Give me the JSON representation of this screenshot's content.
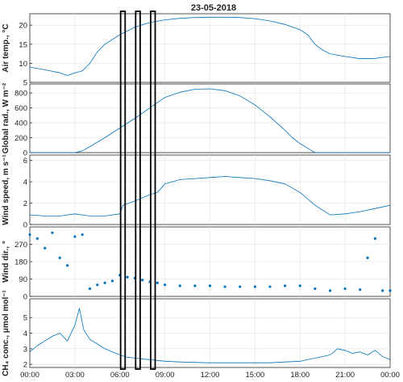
{
  "chart_data": {
    "type": "line",
    "title": "23-05-2018",
    "x_ticks": [
      "00:00",
      "03:00",
      "06:00",
      "09:00",
      "12:00",
      "15:00",
      "18:00",
      "21:00",
      "00:00"
    ],
    "x_hours": [
      0,
      3,
      6,
      9,
      12,
      15,
      18,
      21,
      24
    ],
    "xlim": [
      0,
      24
    ],
    "grid": true,
    "colors": {
      "series": "#0072BD",
      "window_box": "#000000"
    },
    "highlight_windows_hours": [
      [
        6.05,
        6.35
      ],
      [
        7.05,
        7.35
      ],
      [
        8.05,
        8.35
      ]
    ],
    "panels": [
      {
        "key": "temp",
        "style": "line",
        "ylabel": "Air temp., °C",
        "ylim": [
          5,
          23
        ],
        "yticks": [
          5,
          10,
          15,
          20
        ],
        "x": [
          0,
          1,
          2,
          2.5,
          3,
          3.5,
          4,
          4.5,
          5,
          6,
          7,
          8,
          9,
          10,
          11,
          12,
          13,
          14,
          15,
          16,
          17,
          18,
          18.5,
          19,
          19.5,
          20,
          21,
          22,
          23,
          24
        ],
        "y": [
          9,
          8.3,
          7.5,
          6.8,
          7.5,
          8,
          10,
          13,
          15,
          17.5,
          19.5,
          20.7,
          21.4,
          21.8,
          22,
          22.1,
          22.1,
          22,
          21.7,
          21.1,
          20.2,
          18.8,
          17.5,
          15,
          13.5,
          12.5,
          11.8,
          11.2,
          11.3,
          11.8
        ]
      },
      {
        "key": "rad",
        "style": "line",
        "ylabel": "Global rad., W m⁻²",
        "ylim": [
          0,
          920
        ],
        "yticks": [
          0,
          200,
          400,
          600,
          800
        ],
        "x": [
          0,
          3,
          3.5,
          4,
          5,
          6,
          7,
          8,
          9,
          10,
          11,
          12,
          13,
          14,
          15,
          16,
          17,
          17.5,
          18,
          19,
          24
        ],
        "y": [
          0,
          0,
          25,
          80,
          200,
          330,
          460,
          600,
          740,
          810,
          850,
          855,
          830,
          760,
          640,
          480,
          300,
          200,
          120,
          0,
          0
        ]
      },
      {
        "key": "wind",
        "style": "line",
        "ylabel": "Wind speed, m s⁻¹",
        "ylim": [
          0,
          6.5
        ],
        "yticks": [
          0,
          2,
          4,
          6
        ],
        "x": [
          0,
          1,
          2,
          3,
          4,
          5,
          6,
          6.2,
          7,
          8,
          8.5,
          9,
          10,
          11,
          12,
          13,
          14,
          15,
          16,
          17,
          18,
          19,
          20,
          21,
          22,
          23,
          24
        ],
        "y": [
          0.9,
          0.8,
          0.8,
          1.0,
          0.8,
          0.8,
          1.0,
          1.8,
          2.2,
          2.8,
          3.0,
          3.8,
          4.2,
          4.3,
          4.4,
          4.5,
          4.4,
          4.3,
          4.1,
          3.8,
          3.0,
          1.8,
          0.9,
          1.0,
          1.2,
          1.5,
          1.8
        ]
      },
      {
        "key": "dir",
        "style": "points",
        "ylabel": "Wind dir., °",
        "ylim": [
          0,
          360
        ],
        "yticks": [
          0,
          90,
          180,
          270
        ],
        "x": [
          0,
          0.5,
          1,
          1.5,
          2,
          2.5,
          3,
          3.5,
          4,
          4.5,
          5,
          5.5,
          6,
          6.5,
          7,
          7.5,
          8,
          8.5,
          9,
          10,
          11,
          12,
          13,
          14,
          15,
          16,
          17,
          18,
          19,
          20,
          21,
          22,
          22.5,
          23,
          23.5,
          24
        ],
        "y": [
          320,
          300,
          250,
          330,
          200,
          160,
          310,
          320,
          40,
          60,
          70,
          80,
          110,
          100,
          95,
          85,
          75,
          70,
          60,
          55,
          55,
          55,
          50,
          50,
          50,
          50,
          55,
          55,
          40,
          30,
          40,
          35,
          200,
          300,
          30,
          30
        ]
      },
      {
        "key": "ch4",
        "style": "line",
        "ylabel": "CH₄ conc., μmol mol⁻¹",
        "ylim": [
          1.8,
          6.2
        ],
        "yticks": [
          2,
          3,
          4,
          5
        ],
        "x": [
          0,
          0.5,
          1,
          1.5,
          2,
          2.5,
          3,
          3.3,
          3.6,
          4,
          4.5,
          5,
          5.5,
          6,
          6.5,
          7,
          8,
          9,
          10,
          12,
          14,
          16,
          17,
          18,
          19,
          20,
          20.5,
          21,
          21.5,
          22,
          22.5,
          23,
          23.5,
          24
        ],
        "y": [
          2.8,
          3.2,
          3.5,
          3.8,
          4.0,
          3.5,
          4.5,
          5.6,
          4.2,
          3.6,
          3.3,
          3.0,
          2.8,
          2.6,
          2.45,
          2.4,
          2.3,
          2.2,
          2.15,
          2.1,
          2.1,
          2.1,
          2.15,
          2.2,
          2.4,
          2.6,
          3.0,
          2.9,
          2.7,
          2.8,
          2.6,
          2.9,
          2.5,
          2.3
        ]
      }
    ]
  }
}
